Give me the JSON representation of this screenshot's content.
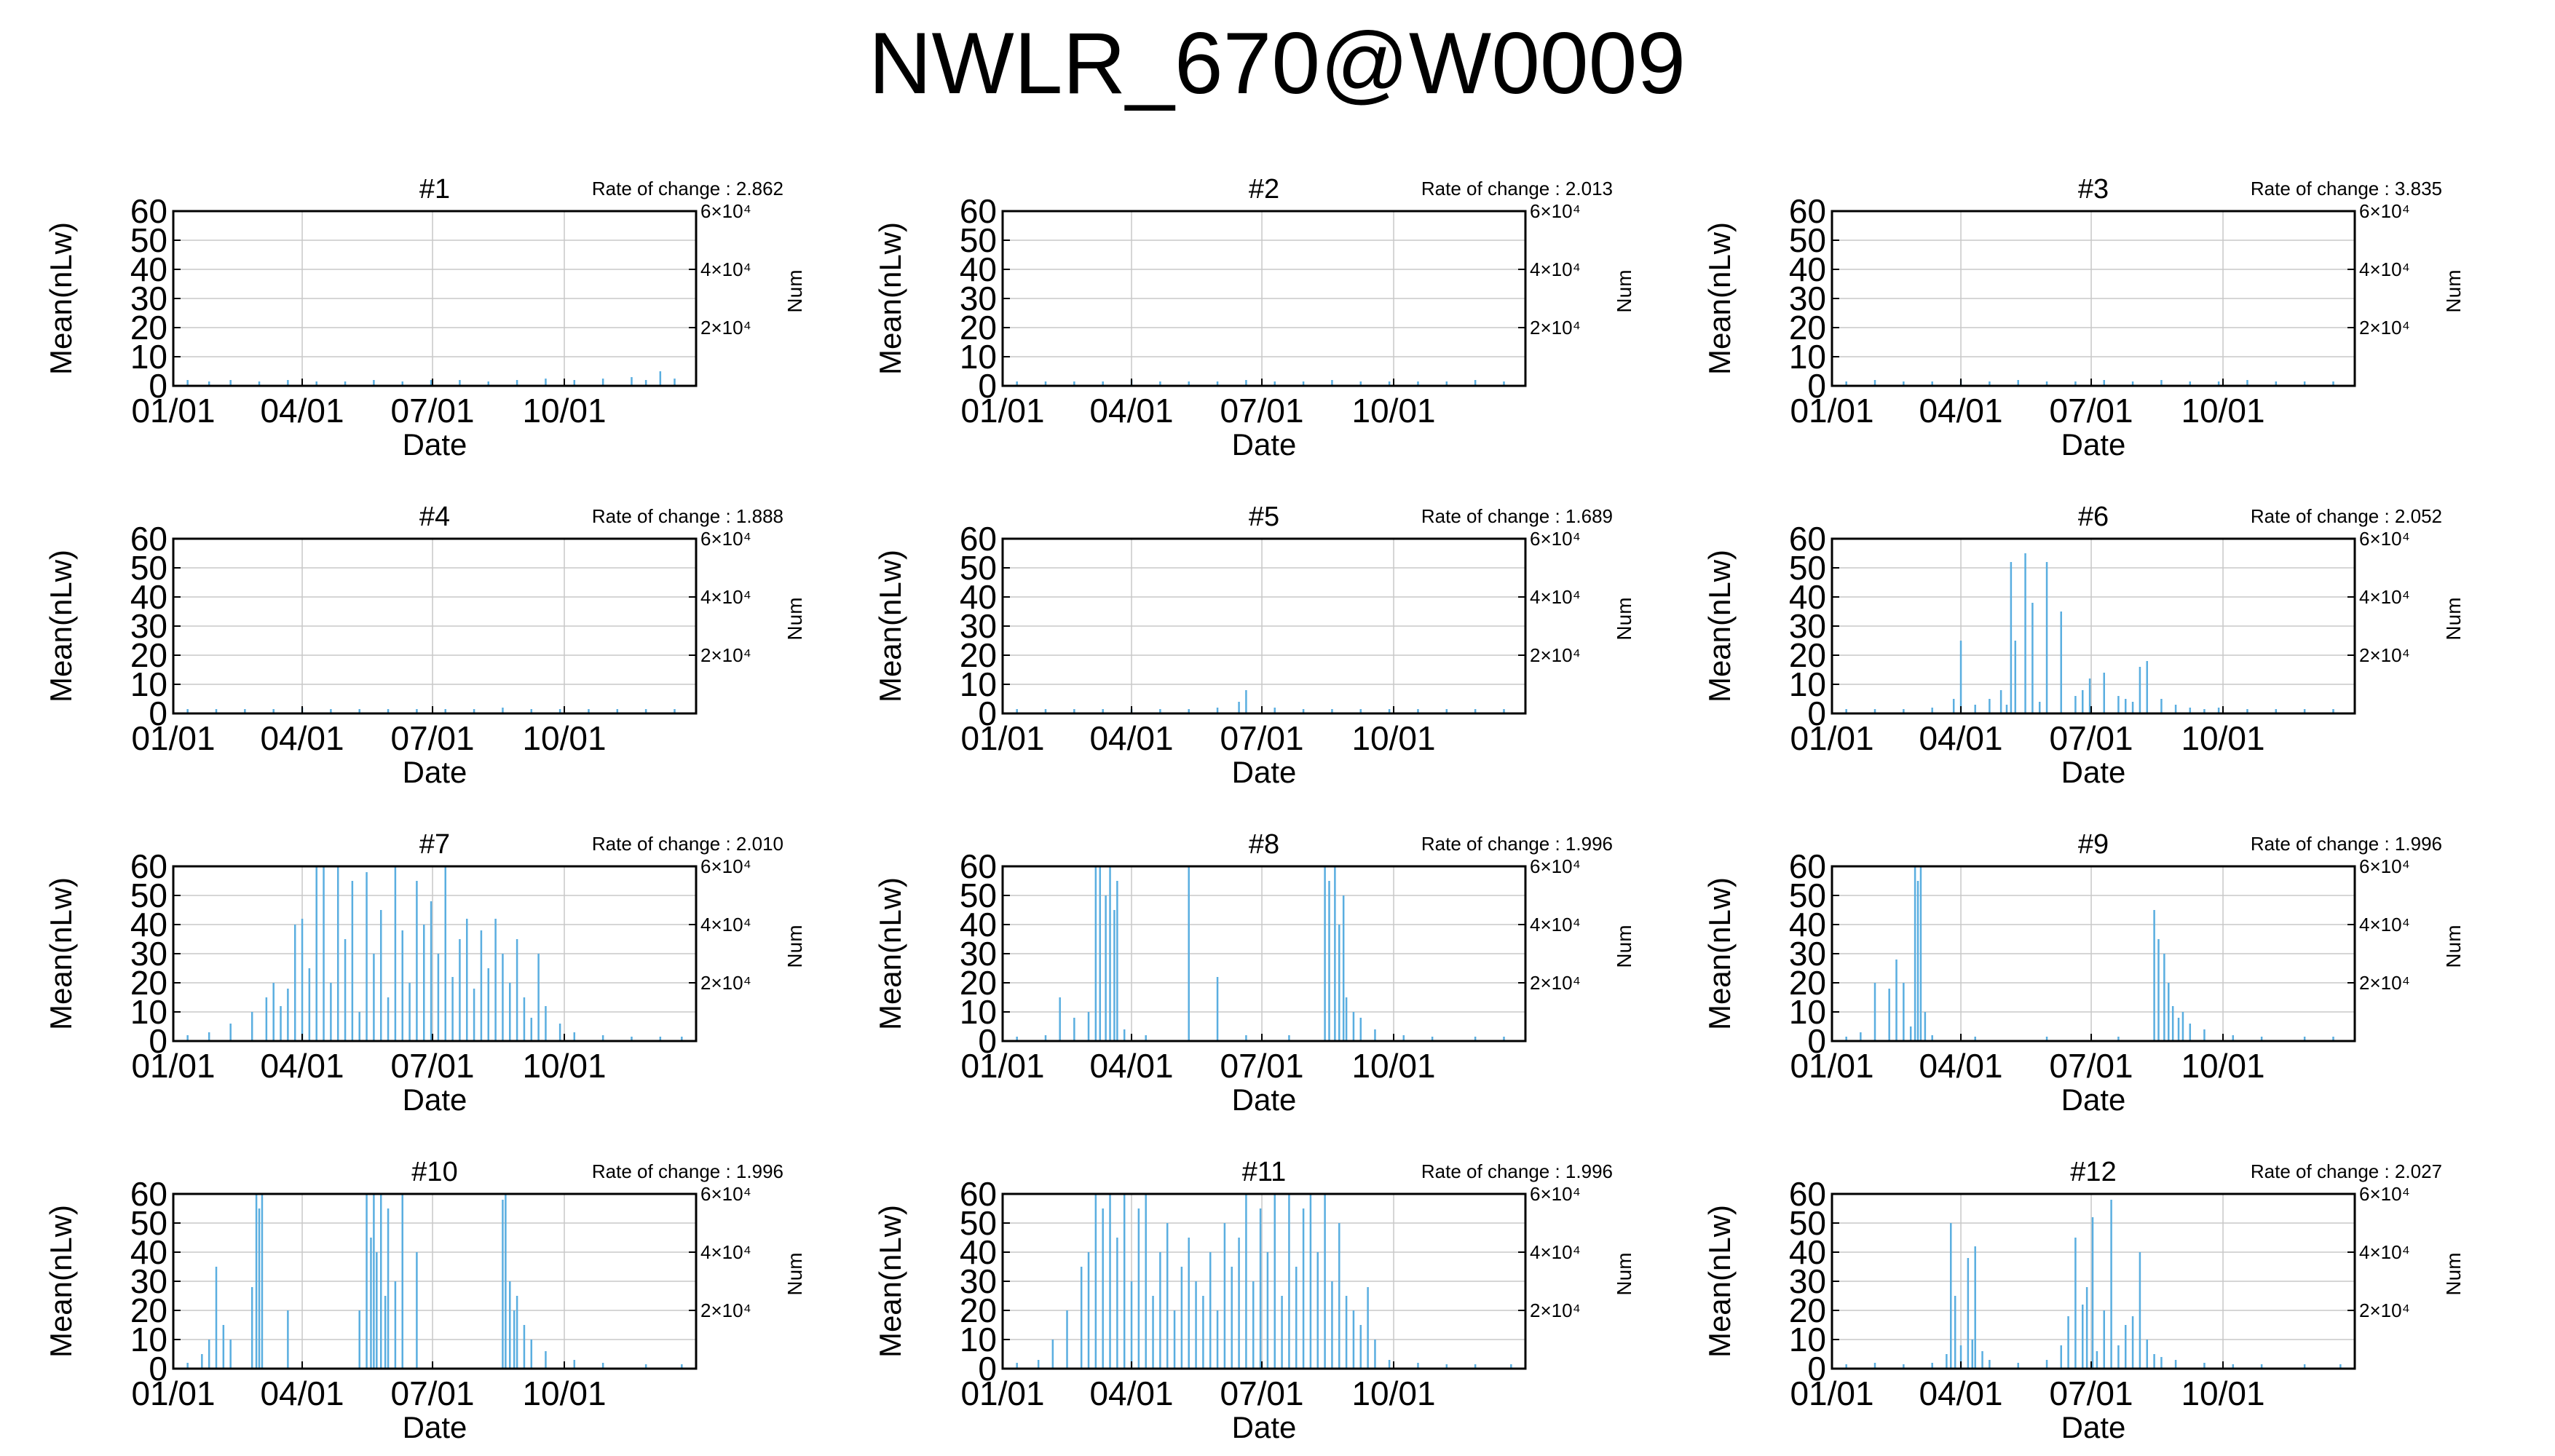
{
  "title": "NWLR_670@W0009",
  "colors": {
    "series": "#5aaee0",
    "grid": "#c8c8c8",
    "axis": "#000000"
  },
  "chart_data": [
    {
      "type": "bar",
      "panel": "#1",
      "rate_of_change": "Rate of change : 2.862",
      "xlabel": "Date",
      "ylabel": "Mean(nLw)",
      "y2label": "Num",
      "ylim": [
        0,
        60
      ],
      "yticks": [
        "0",
        "10",
        "20",
        "30",
        "40",
        "50",
        "60"
      ],
      "xticks": [
        "01/01",
        "04/01",
        "07/01",
        "10/01"
      ],
      "y2ticks": [
        "2×10⁴",
        "4×10⁴",
        "6×10⁴"
      ],
      "grid": true,
      "series": [
        {
          "x": [
            10,
            25,
            40,
            60,
            80,
            100,
            120,
            140,
            160,
            180,
            200,
            220,
            240,
            260,
            280,
            300,
            320,
            330,
            340,
            350
          ],
          "values": [
            2,
            1.5,
            2,
            1.5,
            2,
            1.5,
            1.5,
            2,
            1.5,
            2,
            2,
            1.5,
            2,
            2.5,
            2,
            2.5,
            3,
            2,
            5,
            2.5
          ]
        }
      ]
    },
    {
      "type": "bar",
      "panel": "#2",
      "rate_of_change": "Rate of change : 2.013",
      "xlabel": "Date",
      "ylabel": "Mean(nLw)",
      "y2label": "Num",
      "ylim": [
        0,
        60
      ],
      "yticks": [
        "0",
        "10",
        "20",
        "30",
        "40",
        "50",
        "60"
      ],
      "xticks": [
        "01/01",
        "04/01",
        "07/01",
        "10/01"
      ],
      "y2ticks": [
        "2×10⁴",
        "4×10⁴",
        "6×10⁴"
      ],
      "grid": true,
      "series": [
        {
          "x": [
            10,
            30,
            50,
            70,
            90,
            110,
            130,
            150,
            170,
            190,
            210,
            230,
            250,
            270,
            290,
            310,
            330,
            350
          ],
          "values": [
            1.5,
            1.5,
            1.5,
            1.5,
            2,
            1.5,
            1.5,
            1.5,
            2,
            1.5,
            1.5,
            2,
            1.5,
            1.5,
            1.5,
            1.5,
            2,
            1.5
          ]
        }
      ]
    },
    {
      "type": "bar",
      "panel": "#3",
      "rate_of_change": "Rate of change : 3.835",
      "xlabel": "Date",
      "ylabel": "Mean(nLw)",
      "y2label": "Num",
      "ylim": [
        0,
        60
      ],
      "yticks": [
        "0",
        "10",
        "20",
        "30",
        "40",
        "50",
        "60"
      ],
      "xticks": [
        "01/01",
        "04/01",
        "07/01",
        "10/01"
      ],
      "y2ticks": [
        "2×10⁴",
        "4×10⁴",
        "6×10⁴"
      ],
      "grid": true,
      "series": [
        {
          "x": [
            10,
            30,
            50,
            70,
            90,
            110,
            130,
            150,
            170,
            190,
            210,
            230,
            250,
            270,
            290,
            310,
            330,
            350
          ],
          "values": [
            1.5,
            2,
            1.5,
            1.5,
            2,
            1.5,
            2,
            1.5,
            1.5,
            2,
            1.5,
            2,
            1.5,
            1.5,
            2,
            1.5,
            1.5,
            1.5
          ]
        }
      ]
    },
    {
      "type": "bar",
      "panel": "#4",
      "rate_of_change": "Rate of change : 1.888",
      "xlabel": "Date",
      "ylabel": "Mean(nLw)",
      "y2label": "Num",
      "ylim": [
        0,
        60
      ],
      "yticks": [
        "0",
        "10",
        "20",
        "30",
        "40",
        "50",
        "60"
      ],
      "xticks": [
        "01/01",
        "04/01",
        "07/01",
        "10/01"
      ],
      "y2ticks": [
        "2×10⁴",
        "4×10⁴",
        "6×10⁴"
      ],
      "grid": true,
      "series": [
        {
          "x": [
            10,
            30,
            50,
            70,
            90,
            110,
            130,
            150,
            170,
            190,
            210,
            230,
            250,
            270,
            290,
            310,
            330,
            350
          ],
          "values": [
            1.5,
            1.5,
            1.5,
            1.5,
            2,
            1.5,
            1.5,
            1.5,
            1.5,
            1.5,
            1.5,
            2,
            1.5,
            1.5,
            1.5,
            1.5,
            1.5,
            1.5
          ]
        }
      ]
    },
    {
      "type": "bar",
      "panel": "#5",
      "rate_of_change": "Rate of change : 1.689",
      "xlabel": "Date",
      "ylabel": "Mean(nLw)",
      "y2label": "Num",
      "ylim": [
        0,
        60
      ],
      "yticks": [
        "0",
        "10",
        "20",
        "30",
        "40",
        "50",
        "60"
      ],
      "xticks": [
        "01/01",
        "04/01",
        "07/01",
        "10/01"
      ],
      "y2ticks": [
        "2×10⁴",
        "4×10⁴",
        "6×10⁴"
      ],
      "grid": true,
      "series": [
        {
          "x": [
            10,
            30,
            50,
            70,
            90,
            110,
            130,
            150,
            165,
            170,
            190,
            210,
            230,
            250,
            270,
            290,
            310,
            330,
            350
          ],
          "values": [
            1.5,
            1.5,
            1.5,
            1.5,
            1.5,
            1.5,
            1.5,
            2,
            4,
            8,
            2,
            1.5,
            1.5,
            1.5,
            1.5,
            1.5,
            1.5,
            1.5,
            1.5
          ]
        }
      ]
    },
    {
      "type": "bar",
      "panel": "#6",
      "rate_of_change": "Rate of change : 2.052",
      "xlabel": "Date",
      "ylabel": "Mean(nLw)",
      "y2label": "Num",
      "ylim": [
        0,
        60
      ],
      "yticks": [
        "0",
        "10",
        "20",
        "30",
        "40",
        "50",
        "60"
      ],
      "xticks": [
        "01/01",
        "04/01",
        "07/01",
        "10/01"
      ],
      "y2ticks": [
        "2×10⁴",
        "4×10⁴",
        "6×10⁴"
      ],
      "grid": true,
      "series": [
        {
          "x": [
            10,
            30,
            50,
            70,
            85,
            90,
            100,
            110,
            118,
            122,
            125,
            128,
            135,
            140,
            145,
            150,
            160,
            170,
            175,
            180,
            190,
            200,
            205,
            210,
            215,
            220,
            230,
            240,
            250,
            260,
            270,
            290,
            310,
            330,
            350
          ],
          "values": [
            1.5,
            1.5,
            1.5,
            2,
            5,
            25,
            3,
            5,
            8,
            3,
            52,
            25,
            55,
            38,
            4,
            52,
            35,
            6,
            8,
            12,
            14,
            6,
            5,
            4,
            16,
            18,
            5,
            3,
            2,
            1.5,
            2,
            1.5,
            1.5,
            1.5,
            1.5
          ]
        }
      ]
    },
    {
      "type": "bar",
      "panel": "#7",
      "rate_of_change": "Rate of change : 2.010",
      "xlabel": "Date",
      "ylabel": "Mean(nLw)",
      "y2label": "Num",
      "ylim": [
        0,
        60
      ],
      "yticks": [
        "0",
        "10",
        "20",
        "30",
        "40",
        "50",
        "60"
      ],
      "xticks": [
        "01/01",
        "04/01",
        "07/01",
        "10/01"
      ],
      "y2ticks": [
        "2×10⁴",
        "4×10⁴",
        "6×10⁴"
      ],
      "grid": true,
      "series": [
        {
          "x": [
            10,
            25,
            40,
            55,
            65,
            70,
            75,
            80,
            85,
            90,
            95,
            100,
            105,
            110,
            115,
            120,
            125,
            130,
            135,
            140,
            145,
            150,
            155,
            160,
            165,
            170,
            175,
            180,
            185,
            190,
            195,
            200,
            205,
            210,
            215,
            220,
            225,
            230,
            235,
            240,
            245,
            250,
            255,
            260,
            270,
            280,
            300,
            320,
            340,
            355
          ],
          "values": [
            2,
            3,
            6,
            10,
            15,
            20,
            12,
            18,
            40,
            42,
            25,
            60,
            60,
            20,
            60,
            35,
            55,
            10,
            58,
            30,
            45,
            15,
            60,
            38,
            20,
            55,
            40,
            48,
            30,
            60,
            22,
            35,
            42,
            18,
            38,
            25,
            42,
            30,
            20,
            35,
            15,
            8,
            30,
            12,
            6,
            3,
            2,
            1.5,
            1.5,
            1.5
          ]
        }
      ]
    },
    {
      "type": "bar",
      "panel": "#8",
      "rate_of_change": "Rate of change : 1.996",
      "xlabel": "Date",
      "ylabel": "Mean(nLw)",
      "y2label": "Num",
      "ylim": [
        0,
        60
      ],
      "yticks": [
        "0",
        "10",
        "20",
        "30",
        "40",
        "50",
        "60"
      ],
      "xticks": [
        "01/01",
        "04/01",
        "07/01",
        "10/01"
      ],
      "y2ticks": [
        "2×10⁴",
        "4×10⁴",
        "6×10⁴"
      ],
      "grid": true,
      "series": [
        {
          "x": [
            10,
            30,
            40,
            50,
            60,
            65,
            68,
            72,
            75,
            78,
            80,
            85,
            100,
            130,
            150,
            170,
            200,
            225,
            228,
            232,
            235,
            238,
            240,
            245,
            250,
            260,
            280,
            300,
            330,
            350
          ],
          "values": [
            1.5,
            2,
            15,
            8,
            10,
            60,
            60,
            50,
            60,
            45,
            55,
            4,
            2,
            60,
            22,
            2,
            2,
            60,
            55,
            60,
            40,
            50,
            15,
            10,
            8,
            4,
            2,
            1.5,
            1.5,
            1.5
          ]
        }
      ]
    },
    {
      "type": "bar",
      "panel": "#9",
      "rate_of_change": "Rate of change : 1.996",
      "xlabel": "Date",
      "ylabel": "Mean(nLw)",
      "y2label": "Num",
      "ylim": [
        0,
        60
      ],
      "yticks": [
        "0",
        "10",
        "20",
        "30",
        "40",
        "50",
        "60"
      ],
      "xticks": [
        "01/01",
        "04/01",
        "07/01",
        "10/01"
      ],
      "y2ticks": [
        "2×10⁴",
        "4×10⁴",
        "6×10⁴"
      ],
      "grid": true,
      "series": [
        {
          "x": [
            10,
            20,
            30,
            40,
            45,
            50,
            55,
            58,
            60,
            62,
            65,
            70,
            100,
            150,
            200,
            225,
            228,
            232,
            235,
            238,
            242,
            245,
            250,
            260,
            280,
            300,
            330,
            350
          ],
          "values": [
            1.5,
            3,
            20,
            18,
            28,
            20,
            5,
            60,
            55,
            60,
            10,
            2,
            1.5,
            1.5,
            1.5,
            45,
            35,
            30,
            20,
            12,
            8,
            10,
            6,
            4,
            2,
            1.5,
            1.5,
            1.5
          ]
        }
      ]
    },
    {
      "type": "bar",
      "panel": "#10",
      "rate_of_change": "Rate of change : 1.996",
      "xlabel": "Date",
      "ylabel": "Mean(nLw)",
      "y2label": "Num",
      "ylim": [
        0,
        60
      ],
      "yticks": [
        "0",
        "10",
        "20",
        "30",
        "40",
        "50",
        "60"
      ],
      "xticks": [
        "01/01",
        "04/01",
        "07/01",
        "10/01"
      ],
      "y2ticks": [
        "2×10⁴",
        "4×10⁴",
        "6×10⁴"
      ],
      "grid": true,
      "series": [
        {
          "x": [
            10,
            20,
            25,
            30,
            35,
            40,
            55,
            58,
            60,
            62,
            80,
            130,
            135,
            138,
            140,
            142,
            145,
            148,
            150,
            155,
            160,
            170,
            230,
            232,
            235,
            238,
            240,
            245,
            250,
            260,
            280,
            300,
            330,
            355
          ],
          "values": [
            2,
            5,
            10,
            35,
            15,
            10,
            28,
            60,
            55,
            60,
            20,
            20,
            60,
            45,
            60,
            40,
            60,
            25,
            55,
            30,
            60,
            40,
            58,
            60,
            30,
            20,
            25,
            15,
            10,
            6,
            3,
            2,
            1.5,
            1.5
          ]
        }
      ]
    },
    {
      "type": "bar",
      "panel": "#11",
      "rate_of_change": "Rate of change : 1.996",
      "xlabel": "Date",
      "ylabel": "Mean(nLw)",
      "y2label": "Num",
      "ylim": [
        0,
        60
      ],
      "yticks": [
        "0",
        "10",
        "20",
        "30",
        "40",
        "50",
        "60"
      ],
      "xticks": [
        "01/01",
        "04/01",
        "07/01",
        "10/01"
      ],
      "y2ticks": [
        "2×10⁴",
        "4×10⁴",
        "6×10⁴"
      ],
      "grid": true,
      "series": [
        {
          "x": [
            10,
            25,
            35,
            45,
            55,
            60,
            65,
            70,
            75,
            80,
            85,
            90,
            95,
            100,
            105,
            110,
            115,
            120,
            125,
            130,
            135,
            140,
            145,
            150,
            155,
            160,
            165,
            170,
            175,
            180,
            185,
            190,
            195,
            200,
            205,
            210,
            215,
            220,
            225,
            230,
            235,
            240,
            245,
            250,
            255,
            260,
            270,
            290,
            310,
            330,
            355
          ],
          "values": [
            2,
            3,
            10,
            20,
            35,
            40,
            60,
            55,
            60,
            45,
            60,
            30,
            55,
            60,
            25,
            40,
            50,
            20,
            35,
            45,
            30,
            25,
            40,
            20,
            50,
            35,
            45,
            60,
            30,
            55,
            40,
            60,
            25,
            60,
            35,
            55,
            60,
            40,
            60,
            30,
            50,
            25,
            20,
            15,
            28,
            10,
            3,
            2,
            1.5,
            1.5,
            1.5
          ]
        }
      ]
    },
    {
      "type": "bar",
      "panel": "#12",
      "rate_of_change": "Rate of change : 2.027",
      "xlabel": "Date",
      "ylabel": "Mean(nLw)",
      "y2label": "Num",
      "ylim": [
        0,
        60
      ],
      "yticks": [
        "0",
        "10",
        "20",
        "30",
        "40",
        "50",
        "60"
      ],
      "xticks": [
        "01/01",
        "04/01",
        "07/01",
        "10/01"
      ],
      "y2ticks": [
        "2×10⁴",
        "4×10⁴",
        "6×10⁴"
      ],
      "grid": true,
      "series": [
        {
          "x": [
            10,
            30,
            50,
            70,
            80,
            83,
            86,
            90,
            95,
            98,
            100,
            105,
            110,
            130,
            150,
            160,
            165,
            170,
            175,
            178,
            182,
            185,
            190,
            195,
            200,
            205,
            210,
            215,
            220,
            225,
            230,
            240,
            260,
            280,
            300,
            330,
            355
          ],
          "values": [
            1.5,
            2,
            1.5,
            2,
            5,
            50,
            25,
            8,
            38,
            10,
            42,
            6,
            3,
            2,
            3,
            8,
            18,
            45,
            22,
            28,
            52,
            6,
            20,
            58,
            8,
            15,
            18,
            40,
            10,
            5,
            4,
            3,
            2,
            1.5,
            1.5,
            1.5,
            1.5
          ]
        }
      ]
    }
  ]
}
